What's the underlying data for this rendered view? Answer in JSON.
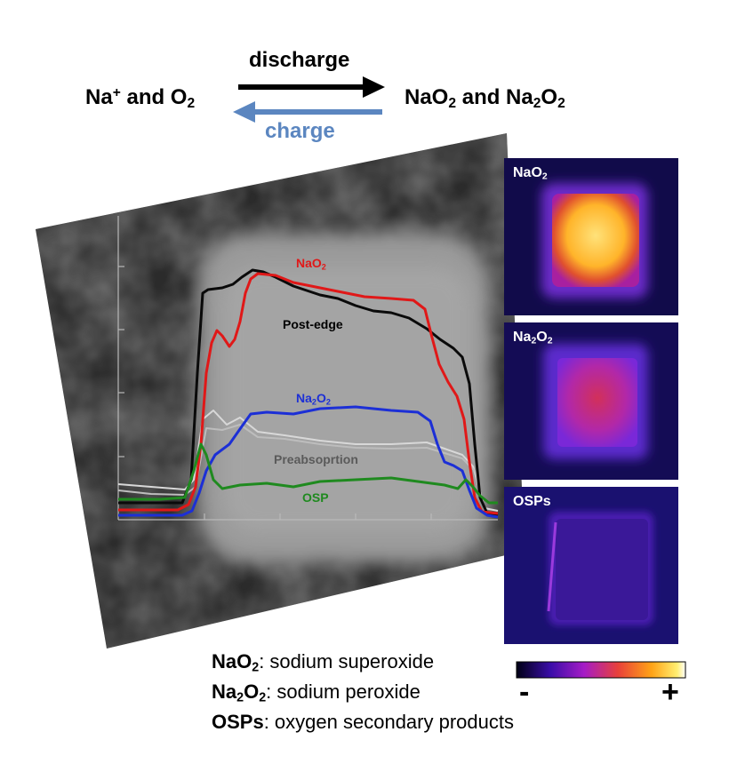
{
  "reaction": {
    "left": {
      "main": "Na",
      "sup": "+",
      "rest": " and O",
      "sub": "2"
    },
    "right": {
      "a": "NaO",
      "a_sub": "2",
      "mid": " and Na",
      "b_sub": "2",
      "b": "O",
      "b_sub2": "2"
    },
    "forward_label": "discharge",
    "reverse_label": "charge",
    "forward_color": "#000000",
    "reverse_color": "#5b86c0"
  },
  "chart_data": {
    "type": "line",
    "title": "",
    "xlabel": "",
    "ylabel": "",
    "series": [
      {
        "name": "NaO2",
        "label_main": "NaO",
        "label_sub": "2",
        "color": "#e01818"
      },
      {
        "name": "Post-edge",
        "label_main": "Post-edge",
        "color": "#000000"
      },
      {
        "name": "Na2O2",
        "label_main": "Na",
        "label_sub": "2",
        "label_mid": "O",
        "label_sub2": "2",
        "color": "#1c2fd6"
      },
      {
        "name": "Preabsoprtion",
        "label_main": "Preabsoprtion",
        "color": "#5a5a5a"
      },
      {
        "name": "OSP",
        "label_main": "OSP",
        "color": "#1f8a1f"
      }
    ]
  },
  "maps": [
    {
      "main": "NaO",
      "sub": "2",
      "rest": ""
    },
    {
      "main": "Na",
      "sub": "2",
      "rest": "O",
      "sub2": "2"
    },
    {
      "main": "OSPs",
      "sub": "",
      "rest": ""
    }
  ],
  "colorbar": {
    "min_label": "-",
    "max_label": "+"
  },
  "legend": [
    {
      "term": "NaO",
      "sub": "2",
      "term_rest": "",
      "sub2": "",
      "desc": ": sodium superoxide"
    },
    {
      "term": "Na",
      "sub": "2",
      "term_rest": "O",
      "sub2": "2",
      "desc": ": sodium peroxide"
    },
    {
      "term": "OSPs",
      "sub": "",
      "term_rest": "",
      "sub2": "",
      "desc": ": oxygen secondary products"
    }
  ]
}
